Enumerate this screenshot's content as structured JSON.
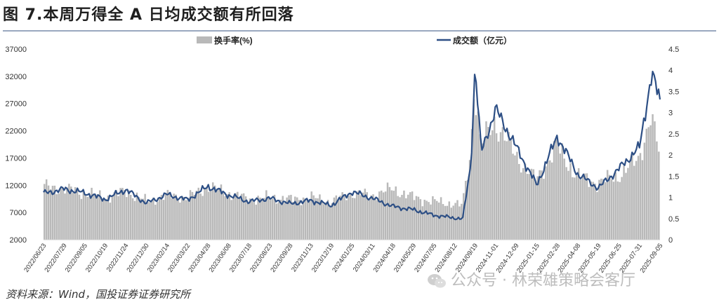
{
  "title": "图 7.本周万得全 A 日均成交额有所回落",
  "source": "资料来源：Wind，国投证券证券研究所",
  "watermark": "公众号 · 林荣雄策略会客厅",
  "colors": {
    "bar": "#b9b9b9",
    "line": "#2d4f85",
    "title_rule": "#9aa8bf"
  },
  "chart_data": {
    "type": "bar+line",
    "legend": [
      {
        "name": "换手率(%)",
        "kind": "bar"
      },
      {
        "name": "成交额（亿元）",
        "kind": "line"
      }
    ],
    "legend_placement": "top",
    "grid": false,
    "y_left": {
      "ylim": [
        2000,
        37000
      ],
      "ticks": [
        "2000",
        "7000",
        "12000",
        "17000",
        "22000",
        "27000",
        "32000",
        "37000"
      ],
      "series": "成交额（亿元）"
    },
    "y_right": {
      "ylim": [
        0,
        4.5
      ],
      "ticks": [
        "0",
        "0.5",
        "1",
        "1.5",
        "2",
        "2.5",
        "3",
        "3.5",
        "4",
        "4.5"
      ],
      "series": "换手率(%)"
    },
    "x_ticks": [
      "2022/06/23",
      "2022/07/29",
      "2022/09/05",
      "2022/10/19",
      "2022/11/24",
      "2022/12/30",
      "2023/02/14",
      "2023/03/22",
      "2023/04/28",
      "2023/06/08",
      "2023/07/18",
      "2023/08/23",
      "2023/09/28",
      "2023/11/13",
      "2023/12/19",
      "2024/01/25",
      "2024/03/11",
      "2024/04/18",
      "2024/05/29",
      "2024/07/05",
      "2024/08/12",
      "2024/09/19",
      "2024-11-01",
      "2024-12-09",
      "2025-01-15",
      "2025-02-28",
      "2025-04-08",
      "2025-05-19",
      "2025-06-25",
      "2025-07-31",
      "2025-09-05"
    ],
    "series": [
      {
        "name": "成交额（亿元）",
        "type": "line",
        "points": [
          [
            0,
            10500
          ],
          [
            1,
            11300
          ],
          [
            2,
            10600
          ],
          [
            3,
            9400
          ],
          [
            4,
            11200
          ],
          [
            5,
            8700
          ],
          [
            6,
            10300
          ],
          [
            7,
            9300
          ],
          [
            8,
            11800
          ],
          [
            9,
            10200
          ],
          [
            10,
            9000
          ],
          [
            11,
            9600
          ],
          [
            12,
            8600
          ],
          [
            13,
            9200
          ],
          [
            14,
            8300
          ],
          [
            15,
            10800
          ],
          [
            16,
            9600
          ],
          [
            17,
            8100
          ],
          [
            18,
            7500
          ],
          [
            19,
            6500
          ],
          [
            20,
            6000
          ],
          [
            20.4,
            5800
          ],
          [
            20.8,
            16000
          ],
          [
            21.0,
            34000
          ],
          [
            21.3,
            18000
          ],
          [
            22,
            26000
          ],
          [
            23,
            19000
          ],
          [
            24,
            12000
          ],
          [
            25,
            21000
          ],
          [
            26,
            14000
          ],
          [
            27,
            11500
          ],
          [
            28,
            15000
          ],
          [
            29,
            19000
          ],
          [
            29.6,
            32500
          ],
          [
            30,
            27500
          ]
        ]
      },
      {
        "name": "换手率(%)",
        "type": "bar",
        "points": [
          [
            0,
            1.25
          ],
          [
            1,
            1.2
          ],
          [
            2,
            1.1
          ],
          [
            3,
            1.0
          ],
          [
            4,
            1.15
          ],
          [
            5,
            0.9
          ],
          [
            6,
            1.05
          ],
          [
            7,
            1.0
          ],
          [
            8,
            1.25
          ],
          [
            9,
            1.1
          ],
          [
            10,
            0.95
          ],
          [
            11,
            1.0
          ],
          [
            12,
            0.95
          ],
          [
            13,
            1.0
          ],
          [
            14,
            0.9
          ],
          [
            15,
            1.1
          ],
          [
            16,
            1.05
          ],
          [
            17,
            1.2
          ],
          [
            18,
            1.0
          ],
          [
            19,
            0.9
          ],
          [
            20,
            0.85
          ],
          [
            20.4,
            0.8
          ],
          [
            20.8,
            2.0
          ],
          [
            21.0,
            3.8
          ],
          [
            21.3,
            2.2
          ],
          [
            22,
            2.8
          ],
          [
            23,
            2.0
          ],
          [
            24,
            1.4
          ],
          [
            25,
            2.2
          ],
          [
            26,
            1.5
          ],
          [
            27,
            1.35
          ],
          [
            28,
            1.5
          ],
          [
            29,
            1.9
          ],
          [
            29.6,
            2.9
          ],
          [
            30,
            2.1
          ]
        ]
      }
    ]
  }
}
